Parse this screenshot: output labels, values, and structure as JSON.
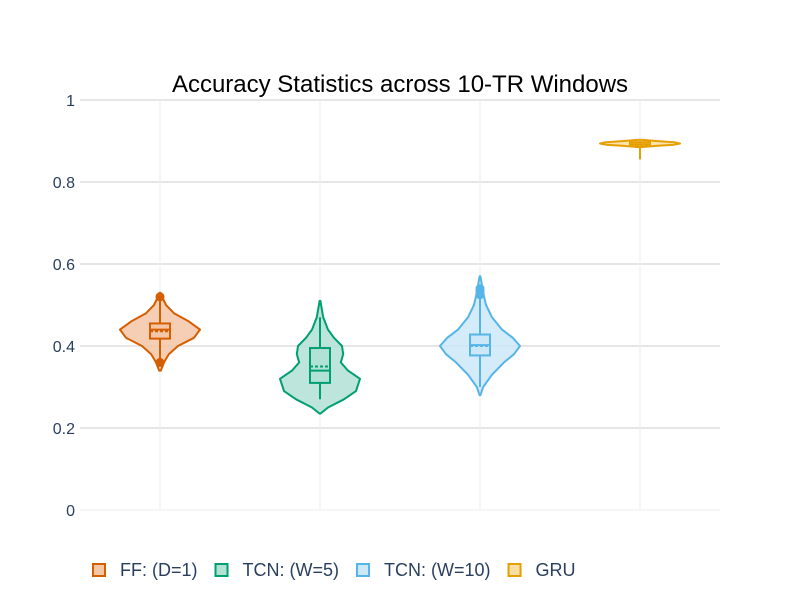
{
  "chart_data": {
    "type": "violin",
    "title": "Accuracy Statistics across 10-TR Windows",
    "ylim": [
      0,
      1
    ],
    "yticks": [
      0,
      0.2,
      0.4,
      0.6,
      0.8,
      1
    ],
    "ytick_labels": [
      "0",
      "0.2",
      "0.4",
      "0.6",
      "0.8",
      "1"
    ],
    "grid": true,
    "legend_position": "bottom",
    "series": [
      {
        "name": "FF: (D=1)",
        "color": "#d55e00",
        "fill": "#f3c6a6",
        "min": 0.34,
        "q1": 0.418,
        "median": 0.44,
        "mean": 0.436,
        "q3": 0.455,
        "max": 0.53,
        "whisker_low": 0.36,
        "whisker_high": 0.518,
        "outliers": [
          0.36,
          0.52
        ],
        "density": [
          [
            0.34,
            0.02
          ],
          [
            0.36,
            0.1
          ],
          [
            0.38,
            0.22
          ],
          [
            0.4,
            0.45
          ],
          [
            0.42,
            0.85
          ],
          [
            0.44,
            1.0
          ],
          [
            0.46,
            0.72
          ],
          [
            0.48,
            0.35
          ],
          [
            0.5,
            0.15
          ],
          [
            0.52,
            0.05
          ],
          [
            0.53,
            0.01
          ]
        ]
      },
      {
        "name": "TCN: (W=5)",
        "color": "#009e73",
        "fill": "#b2e1d5",
        "min": 0.235,
        "q1": 0.31,
        "median": 0.34,
        "mean": 0.35,
        "q3": 0.395,
        "max": 0.51,
        "whisker_low": 0.27,
        "whisker_high": 0.47,
        "outliers": [],
        "density": [
          [
            0.235,
            0.01
          ],
          [
            0.25,
            0.2
          ],
          [
            0.27,
            0.6
          ],
          [
            0.29,
            0.9
          ],
          [
            0.32,
            1.0
          ],
          [
            0.34,
            0.7
          ],
          [
            0.36,
            0.52
          ],
          [
            0.38,
            0.58
          ],
          [
            0.4,
            0.55
          ],
          [
            0.42,
            0.35
          ],
          [
            0.44,
            0.2
          ],
          [
            0.47,
            0.08
          ],
          [
            0.51,
            0.01
          ]
        ]
      },
      {
        "name": "TCN: (W=10)",
        "color": "#56b4e9",
        "fill": "#cce8f8",
        "min": 0.28,
        "q1": 0.377,
        "median": 0.402,
        "mean": 0.4,
        "q3": 0.428,
        "max": 0.57,
        "whisker_low": 0.3,
        "whisker_high": 0.52,
        "outliers": [
          0.525,
          0.53,
          0.535,
          0.54
        ],
        "density": [
          [
            0.28,
            0.01
          ],
          [
            0.3,
            0.08
          ],
          [
            0.33,
            0.3
          ],
          [
            0.36,
            0.6
          ],
          [
            0.38,
            0.85
          ],
          [
            0.4,
            1.0
          ],
          [
            0.42,
            0.82
          ],
          [
            0.44,
            0.55
          ],
          [
            0.47,
            0.3
          ],
          [
            0.5,
            0.15
          ],
          [
            0.53,
            0.08
          ],
          [
            0.57,
            0.01
          ]
        ]
      },
      {
        "name": "GRU",
        "color": "#e69f00",
        "fill": "#f7dfa3",
        "min": 0.855,
        "q1": 0.887,
        "median": 0.892,
        "mean": 0.891,
        "q3": 0.897,
        "max": 0.903,
        "whisker_low": 0.855,
        "whisker_high": 0.9,
        "outliers": [],
        "density": [
          [
            0.885,
            0.02
          ],
          [
            0.888,
            0.4
          ],
          [
            0.891,
            0.85
          ],
          [
            0.894,
            1.0
          ],
          [
            0.897,
            0.85
          ],
          [
            0.9,
            0.4
          ],
          [
            0.903,
            0.02
          ]
        ]
      }
    ]
  }
}
